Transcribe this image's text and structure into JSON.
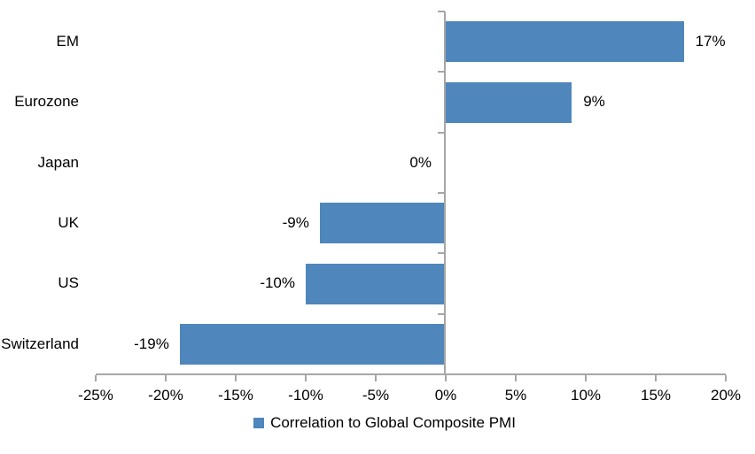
{
  "chart_data": {
    "type": "bar",
    "orientation": "horizontal",
    "title": "",
    "xlabel": "",
    "ylabel": "",
    "categories": [
      "EM",
      "Eurozone",
      "Japan",
      "UK",
      "US",
      "Switzerland"
    ],
    "series": [
      {
        "name": "Correlation to Global Composite PMI",
        "values": [
          17,
          9,
          0,
          -9,
          -10,
          -19
        ],
        "data_labels": [
          "17%",
          "9%",
          "0%",
          "-9%",
          "-10%",
          "-19%"
        ],
        "color": "#4F86BC"
      }
    ],
    "xlim": [
      -25,
      20
    ],
    "x_tick_step": 5,
    "x_tick_labels": [
      "-25%",
      "-20%",
      "-15%",
      "-10%",
      "-5%",
      "0%",
      "5%",
      "10%",
      "15%",
      "20%"
    ],
    "grid": false,
    "legend_position": "bottom-center",
    "axis_color": "#A6A6A6",
    "text_color": "#000000",
    "background_color": "#FFFFFF"
  }
}
